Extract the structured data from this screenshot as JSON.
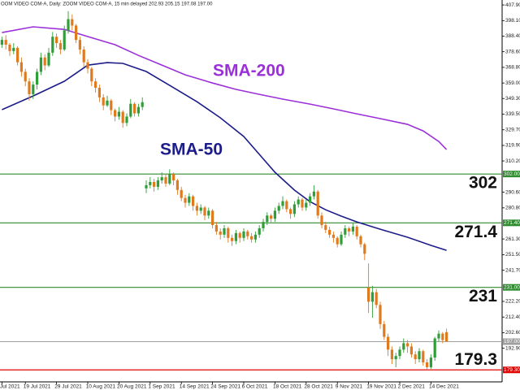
{
  "chart_data": {
    "type": "candlestick",
    "title": "OOM VIDEO COM-A, Daily: ZOOM VIDEO COM-A, 15 min delayed 202.93 205.15 197.08 197.00",
    "categories": [
      "Jul 2021",
      null,
      null,
      null,
      null,
      null,
      "19 Jul 2021",
      null,
      null,
      null,
      null,
      null,
      null,
      null,
      "29 Jul 2021",
      null,
      null,
      null,
      null,
      null,
      null,
      null,
      "10 Aug 2021",
      null,
      null,
      null,
      null,
      null,
      null,
      null,
      "20 Aug 2021",
      null,
      null,
      null,
      null,
      null,
      null,
      null,
      "1 Sep 2021",
      null,
      null,
      null,
      null,
      null,
      null,
      null,
      "14 Sep 2021",
      null,
      null,
      null,
      null,
      null,
      null,
      null,
      "24 Sep 2021",
      null,
      null,
      null,
      null,
      null,
      null,
      null,
      "6 Oct 2021",
      null,
      null,
      null,
      null,
      null,
      null,
      null,
      "18 Oct 2021",
      null,
      null,
      null,
      null,
      null,
      null,
      null,
      "28 Oct 2021",
      null,
      null,
      null,
      null,
      null,
      null,
      null,
      "9 Nov 2021",
      null,
      null,
      null,
      null,
      null,
      null,
      null,
      "19 Nov 2021",
      null,
      null,
      null,
      null,
      null,
      null,
      null,
      "2 Dec 2021",
      null,
      null,
      null,
      null,
      null,
      null,
      null,
      "14 Dec 2021",
      null,
      null,
      null,
      null
    ],
    "candles": {
      "up_color": "#2e9e36",
      "down_color": "#e07a1f",
      "open": [
        383,
        386,
        383,
        379,
        381,
        372,
        366,
        360,
        352,
        358,
        366,
        375,
        370,
        378,
        388,
        384,
        380,
        392,
        399,
        395,
        386,
        380,
        372,
        368,
        360,
        356,
        350,
        345,
        348,
        342,
        338,
        341,
        334,
        338,
        346,
        340,
        344,
        293,
        295,
        297,
        294,
        298,
        300,
        296,
        302,
        298,
        292,
        287,
        284,
        288,
        282,
        279,
        281,
        276,
        279,
        270,
        266,
        264,
        268,
        262,
        260,
        265,
        262,
        266,
        263,
        261,
        264,
        268,
        272,
        276,
        274,
        279,
        282,
        285,
        280,
        277,
        283,
        286,
        281,
        284,
        288,
        291,
        276,
        270,
        267,
        264,
        262,
        258,
        264,
        268,
        266,
        269,
        263,
        258,
        231,
        222,
        228,
        220,
        208,
        200,
        192,
        186,
        188,
        192,
        196,
        194,
        189,
        186,
        191,
        184,
        181,
        187,
        199,
        202,
        202.93
      ],
      "high": [
        388,
        389,
        384,
        384,
        382,
        375,
        368,
        362,
        360,
        368,
        378,
        377,
        381,
        391,
        390,
        386,
        395,
        404,
        402,
        396,
        388,
        382,
        374,
        369,
        362,
        358,
        352,
        351,
        349,
        343,
        344,
        342,
        340,
        349,
        347,
        346,
        350,
        298,
        300,
        299,
        300,
        303,
        302,
        305,
        303,
        299,
        294,
        289,
        290,
        289,
        284,
        283,
        282,
        281,
        280,
        272,
        268,
        270,
        269,
        264,
        267,
        266,
        268,
        267,
        265,
        266,
        270,
        274,
        278,
        277,
        281,
        284,
        288,
        286,
        281,
        285,
        288,
        287,
        286,
        290,
        295,
        292,
        278,
        272,
        269,
        266,
        263,
        266,
        270,
        269,
        271,
        270,
        264,
        259,
        246,
        232,
        230,
        222,
        210,
        202,
        194,
        190,
        194,
        199,
        198,
        196,
        191,
        193,
        192,
        186,
        189,
        200,
        204,
        203,
        205.15
      ],
      "low": [
        381,
        380,
        376,
        377,
        370,
        363,
        357,
        348,
        349,
        355,
        364,
        367,
        369,
        376,
        381,
        377,
        379,
        390,
        392,
        384,
        377,
        369,
        365,
        357,
        353,
        347,
        342,
        344,
        339,
        335,
        336,
        331,
        332,
        337,
        338,
        338,
        342,
        290,
        293,
        291,
        292,
        296,
        294,
        295,
        295,
        289,
        285,
        281,
        282,
        279,
        276,
        277,
        273,
        274,
        268,
        264,
        261,
        262,
        259,
        257,
        258,
        259,
        260,
        261,
        259,
        259,
        262,
        266,
        270,
        271,
        272,
        277,
        280,
        278,
        274,
        275,
        281,
        279,
        279,
        282,
        286,
        274,
        268,
        265,
        262,
        259,
        256,
        257,
        262,
        263,
        264,
        261,
        256,
        248,
        215,
        212,
        218,
        205,
        198,
        188,
        183,
        181,
        186,
        190,
        190,
        187,
        183,
        184,
        182,
        179.3,
        180,
        185,
        197,
        196,
        197.08
      ],
      "close": [
        386,
        383,
        379,
        381,
        372,
        366,
        360,
        352,
        358,
        366,
        375,
        370,
        378,
        388,
        384,
        380,
        392,
        399,
        395,
        386,
        380,
        372,
        368,
        360,
        356,
        350,
        345,
        348,
        342,
        338,
        341,
        334,
        338,
        346,
        340,
        344,
        347,
        295,
        297,
        294,
        298,
        300,
        296,
        302,
        298,
        292,
        287,
        284,
        288,
        282,
        279,
        281,
        276,
        279,
        270,
        266,
        264,
        268,
        262,
        260,
        265,
        262,
        266,
        263,
        261,
        264,
        268,
        272,
        276,
        274,
        279,
        282,
        285,
        280,
        277,
        283,
        286,
        281,
        284,
        288,
        291,
        276,
        270,
        267,
        264,
        262,
        258,
        264,
        268,
        266,
        269,
        263,
        258,
        252,
        222,
        228,
        220,
        208,
        200,
        192,
        186,
        188,
        192,
        196,
        194,
        189,
        186,
        191,
        184,
        181,
        187,
        199,
        202,
        198,
        197
      ]
    },
    "series": [
      {
        "name": "SMA-200",
        "color": "#9b30d9",
        "x": [
          0,
          8,
          16,
          22,
          29,
          35,
          41,
          47,
          54,
          60,
          66,
          72,
          79,
          85,
          91,
          97,
          104,
          108,
          112,
          114
        ],
        "values": [
          390.6,
          394.2,
          392.6,
          388.1,
          383.0,
          376.3,
          370.2,
          364.1,
          359.0,
          355.0,
          351.9,
          348.9,
          345.8,
          342.8,
          339.7,
          336.7,
          333.1,
          329.0,
          322.4,
          317.3
        ]
      },
      {
        "name": "SMA-50",
        "color": "#1c1c8a",
        "x": [
          0,
          8,
          16,
          22,
          27,
          31,
          37,
          43,
          50,
          56,
          62,
          66,
          70,
          75,
          79,
          83,
          87,
          91,
          97,
          104,
          110,
          114
        ],
        "values": [
          342.3,
          350.9,
          360.1,
          370.2,
          371.8,
          371.3,
          366.2,
          357.5,
          347.3,
          337.2,
          325.5,
          314.3,
          303.1,
          291.9,
          284.7,
          279.6,
          275.6,
          272.0,
          267.4,
          262.4,
          257.3,
          254.2
        ]
      }
    ],
    "levels": [
      {
        "value": 302,
        "tag": "302.00",
        "color": "#2e8b2e"
      },
      {
        "value": 271.4,
        "tag": "271.40",
        "color": "#2e8b2e"
      },
      {
        "value": 231,
        "tag": "231.00",
        "color": "#2e8b2e"
      },
      {
        "value": 179.3,
        "tag": "179.30",
        "color": "#e00000"
      }
    ],
    "last_price": {
      "value": 197,
      "tag": "197.00",
      "color": "#a0a0a0"
    },
    "ylim": [
      171.8,
      411
    ],
    "yticks": [
      {
        "value": 407.9,
        "label": "407.90"
      },
      {
        "value": 398.1,
        "label": "398.10"
      },
      {
        "value": 388.4,
        "label": "388.40"
      },
      {
        "value": 378.6,
        "label": "378.60"
      },
      {
        "value": 368.8,
        "label": "368.80"
      },
      {
        "value": 359.0,
        "label": "359.00"
      },
      {
        "value": 349.3,
        "label": "349.30"
      },
      {
        "value": 339.5,
        "label": "339.50"
      },
      {
        "value": 329.7,
        "label": "329.70"
      },
      {
        "value": 319.9,
        "label": "319.90"
      },
      {
        "value": 310.2,
        "label": "310.20"
      },
      {
        "value": 290.6,
        "label": "290.60"
      },
      {
        "value": 280.8,
        "label": "280.80"
      },
      {
        "value": 261.3,
        "label": "261.30"
      },
      {
        "value": 251.5,
        "label": "251.50"
      },
      {
        "value": 241.7,
        "label": "241.70"
      },
      {
        "value": 222.2,
        "label": "222.20"
      },
      {
        "value": 212.4,
        "label": "212.40"
      },
      {
        "value": 202.6,
        "label": "202.60"
      },
      {
        "value": 192.9,
        "label": "192.90"
      }
    ],
    "grid": false
  }
}
